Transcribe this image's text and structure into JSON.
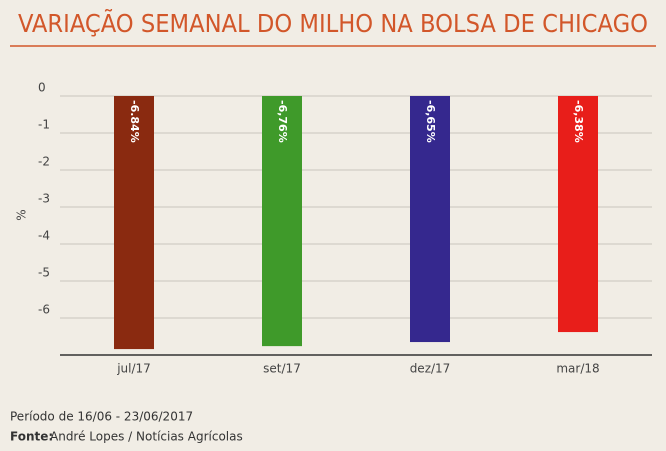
{
  "chart_data": {
    "type": "bar",
    "title": "VARIAÇÃO SEMANAL DO MILHO NA BOLSA DE CHICAGO",
    "y_label": "%",
    "categories": [
      "jul/17",
      "set/17",
      "dez/17",
      "mar/18"
    ],
    "values": [
      -6.84,
      -6.76,
      -6.65,
      -6.38
    ],
    "value_labels": [
      "-6.84%",
      "-6,76%",
      "-6,65%",
      "-6,38%"
    ],
    "colors": [
      "#8a2a10",
      "#3f9a2a",
      "#35288e",
      "#e81e1a"
    ],
    "ylim": [
      -7,
      0
    ],
    "yticks": [
      0,
      -1,
      -2,
      -3,
      -4,
      -5,
      -6
    ],
    "grid": true
  },
  "footer": {
    "period": "Período de 16/06 - 23/06/2017",
    "source_label": "Fonte:",
    "source": "André Lopes / Notícias Agrícolas"
  }
}
